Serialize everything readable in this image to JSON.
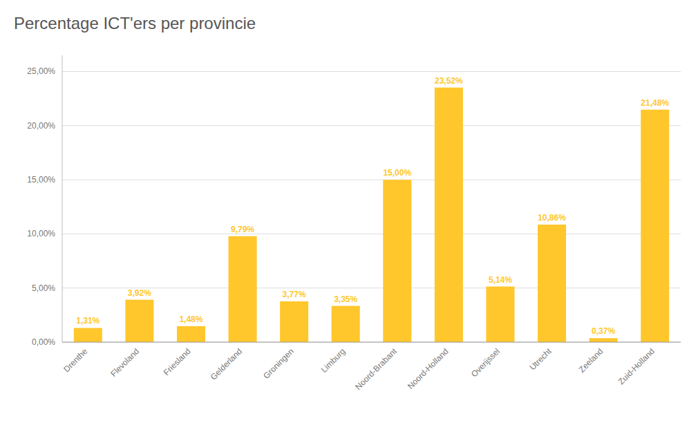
{
  "chart_data": {
    "type": "bar",
    "title": "Percentage ICT'ers per provincie",
    "categories": [
      "Drenthe",
      "Flevoland",
      "Friesland",
      "Gelderland",
      "Groningen",
      "Limburg",
      "Noord-Brabant",
      "Noord-Holland",
      "Overijssel",
      "Utrecht",
      "Zeeland",
      "Zuid-Holland"
    ],
    "values": [
      1.31,
      3.92,
      1.48,
      9.79,
      3.77,
      3.35,
      15.0,
      23.52,
      5.14,
      10.86,
      0.37,
      21.48
    ],
    "value_labels": [
      "1,31%",
      "3,92%",
      "1,48%",
      "9,79%",
      "3,77%",
      "3,35%",
      "15,00%",
      "23,52%",
      "5,14%",
      "10,86%",
      "0,37%",
      "21,48%"
    ],
    "data_labels": true,
    "color": "#FFC72C",
    "ylim": [
      0,
      26.5
    ],
    "yticks": [
      {
        "value": 0,
        "label": "0,00%"
      },
      {
        "value": 5,
        "label": "5,00%"
      },
      {
        "value": 10,
        "label": "10,00%"
      },
      {
        "value": 15,
        "label": "15,00%"
      },
      {
        "value": 20,
        "label": "20,00%"
      },
      {
        "value": 25,
        "label": "25,00%"
      }
    ],
    "grid": true
  }
}
